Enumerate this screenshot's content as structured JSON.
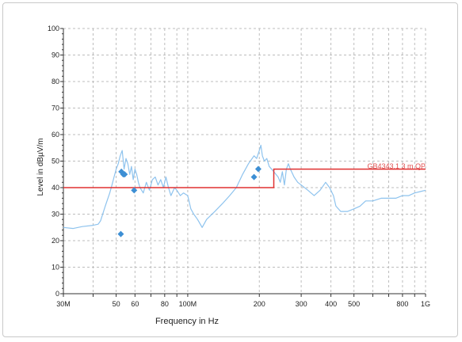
{
  "chart_data": {
    "type": "line",
    "xlabel": "Frequency in Hz",
    "ylabel": "Level in dBµV/m",
    "x_scale": "log",
    "xlim": [
      30,
      1000
    ],
    "ylim": [
      0,
      100
    ],
    "grid": true,
    "y_ticks": [
      "0",
      "10",
      "20",
      "30",
      "40",
      "50",
      "60",
      "70",
      "80",
      "90",
      "100"
    ],
    "x_major_ticks": [
      {
        "f": 30,
        "label": "30M"
      },
      {
        "f": 50,
        "label": "50"
      },
      {
        "f": 60,
        "label": "60"
      },
      {
        "f": 80,
        "label": "80"
      },
      {
        "f": 100,
        "label": "100M"
      },
      {
        "f": 200,
        "label": "200"
      },
      {
        "f": 300,
        "label": "300"
      },
      {
        "f": 400,
        "label": "400"
      },
      {
        "f": 500,
        "label": "500"
      },
      {
        "f": 800,
        "label": "800"
      },
      {
        "f": 1000,
        "label": "1G"
      }
    ],
    "x_minor_ticks": [
      40,
      70,
      90,
      600,
      700,
      900
    ],
    "spectrum": {
      "color": "#8ec3ee",
      "points": [
        [
          30,
          25.0
        ],
        [
          33,
          24.6
        ],
        [
          36,
          25.3
        ],
        [
          40,
          25.8
        ],
        [
          42,
          26.2
        ],
        [
          43,
          27.5
        ],
        [
          45,
          33
        ],
        [
          47,
          38
        ],
        [
          48,
          41
        ],
        [
          49,
          44
        ],
        [
          50,
          47
        ],
        [
          51,
          49
        ],
        [
          52,
          52
        ],
        [
          53,
          54
        ],
        [
          54,
          47
        ],
        [
          55,
          51
        ],
        [
          56,
          49
        ],
        [
          57,
          45
        ],
        [
          58,
          48
        ],
        [
          59,
          43
        ],
        [
          60,
          47
        ],
        [
          61,
          45
        ],
        [
          62,
          42
        ],
        [
          63,
          40
        ],
        [
          65,
          38
        ],
        [
          67,
          42
        ],
        [
          69,
          39
        ],
        [
          71,
          43
        ],
        [
          73,
          44
        ],
        [
          75,
          41
        ],
        [
          77,
          43
        ],
        [
          79,
          40
        ],
        [
          81,
          44
        ],
        [
          83,
          40
        ],
        [
          85,
          37
        ],
        [
          88,
          40
        ],
        [
          90,
          39
        ],
        [
          93,
          37
        ],
        [
          96,
          38
        ],
        [
          100,
          37
        ],
        [
          103,
          32
        ],
        [
          106,
          30
        ],
        [
          110,
          28
        ],
        [
          115,
          25
        ],
        [
          120,
          28
        ],
        [
          130,
          31
        ],
        [
          140,
          34
        ],
        [
          150,
          37
        ],
        [
          160,
          40
        ],
        [
          170,
          45
        ],
        [
          180,
          49
        ],
        [
          190,
          52
        ],
        [
          195,
          51
        ],
        [
          200,
          54
        ],
        [
          203,
          56
        ],
        [
          206,
          52
        ],
        [
          210,
          50
        ],
        [
          215,
          51
        ],
        [
          220,
          48
        ],
        [
          230,
          46
        ],
        [
          240,
          44
        ],
        [
          245,
          42
        ],
        [
          250,
          46
        ],
        [
          255,
          41
        ],
        [
          260,
          47
        ],
        [
          265,
          49
        ],
        [
          270,
          47
        ],
        [
          280,
          44
        ],
        [
          290,
          42
        ],
        [
          300,
          41
        ],
        [
          320,
          39
        ],
        [
          340,
          37
        ],
        [
          360,
          39
        ],
        [
          380,
          42
        ],
        [
          395,
          40
        ],
        [
          410,
          37
        ],
        [
          420,
          33
        ],
        [
          440,
          31
        ],
        [
          470,
          31
        ],
        [
          500,
          32
        ],
        [
          530,
          33
        ],
        [
          560,
          35
        ],
        [
          600,
          35
        ],
        [
          650,
          36
        ],
        [
          700,
          36
        ],
        [
          750,
          36
        ],
        [
          800,
          37
        ],
        [
          850,
          37
        ],
        [
          900,
          38
        ],
        [
          950,
          38.5
        ],
        [
          1000,
          39
        ]
      ]
    },
    "limit_line": {
      "name": "GB4343.1 3 m QP",
      "color": "#e03030",
      "points": [
        [
          30,
          40
        ],
        [
          230,
          40
        ],
        [
          230,
          47
        ],
        [
          1000,
          47
        ]
      ]
    },
    "markers": {
      "color": "#3d8fd4",
      "points": [
        [
          52.3,
          22.5
        ],
        [
          52.6,
          46
        ],
        [
          53.6,
          45
        ],
        [
          54.3,
          45
        ],
        [
          59.5,
          39
        ],
        [
          190,
          44
        ],
        [
          198,
          47
        ]
      ]
    }
  }
}
